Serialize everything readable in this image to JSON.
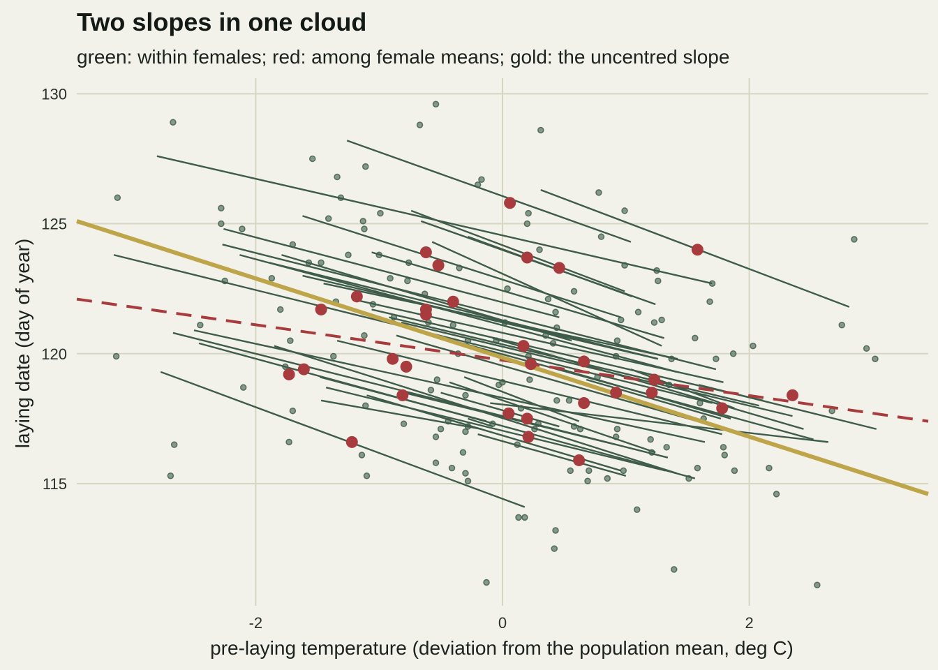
{
  "chart_data": {
    "type": "scatter",
    "title": "Two slopes in one cloud",
    "subtitle": "green: within females; red: among female means; gold: the uncentred slope",
    "xlabel": "pre-laying temperature (deviation from the population mean, deg C)",
    "ylabel": "laying date (day of year)",
    "xlim": [
      -3.45,
      3.45
    ],
    "ylim": [
      110.3,
      130.6
    ],
    "x_ticks": [
      {
        "value": -2,
        "label": "-2"
      },
      {
        "value": 0,
        "label": "0"
      },
      {
        "value": 2,
        "label": "2"
      }
    ],
    "y_ticks": [
      {
        "value": 115,
        "label": "115"
      },
      {
        "value": 120,
        "label": "120"
      },
      {
        "value": 125,
        "label": "125"
      },
      {
        "value": 130,
        "label": "130"
      }
    ],
    "grid": true,
    "legend": "none",
    "colors": {
      "background": "#f2f1ea",
      "grid": "#d6d7c3",
      "points": "#5e7c66",
      "within_lines": "#3f5c4a",
      "female_means": "#a83b3d",
      "between_line": "#a83b3d",
      "uncentred_line": "#bfa54a"
    },
    "observations": [
      [
        -3.12,
        126.0
      ],
      [
        -3.13,
        119.9
      ],
      [
        -2.67,
        128.9
      ],
      [
        -2.66,
        116.5
      ],
      [
        -2.69,
        115.3
      ],
      [
        -2.45,
        121.1
      ],
      [
        -2.28,
        125.6
      ],
      [
        -2.28,
        125.0
      ],
      [
        -2.25,
        122.8
      ],
      [
        -2.11,
        124.8
      ],
      [
        -2.1,
        118.7
      ],
      [
        -1.87,
        122.9
      ],
      [
        -1.8,
        121.7
      ],
      [
        -1.76,
        119.5
      ],
      [
        -1.7,
        124.2
      ],
      [
        -1.72,
        120.5
      ],
      [
        -1.7,
        117.8
      ],
      [
        -1.73,
        116.6
      ],
      [
        -1.57,
        123.5
      ],
      [
        -1.47,
        123.5
      ],
      [
        -1.54,
        127.5
      ],
      [
        -1.41,
        125.2
      ],
      [
        -1.35,
        122.0
      ],
      [
        -1.37,
        119.9
      ],
      [
        -1.34,
        126.8
      ],
      [
        -1.31,
        126.0
      ],
      [
        -1.25,
        123.8
      ],
      [
        -1.13,
        125.1
      ],
      [
        -1.12,
        124.8
      ],
      [
        -1.11,
        127.2
      ],
      [
        -1.12,
        120.7
      ],
      [
        -1.11,
        118.0
      ],
      [
        -1.14,
        116.1
      ],
      [
        -1.1,
        115.3
      ],
      [
        -1.05,
        121.9
      ],
      [
        -1.0,
        123.8
      ],
      [
        -0.99,
        125.4
      ],
      [
        -0.91,
        122.9
      ],
      [
        -0.88,
        121.4
      ],
      [
        -0.8,
        117.3
      ],
      [
        -0.76,
        123.5
      ],
      [
        -0.77,
        122.8
      ],
      [
        -0.63,
        122.3
      ],
      [
        -0.6,
        121.2
      ],
      [
        -0.58,
        118.6
      ],
      [
        -0.54,
        129.6
      ],
      [
        -0.67,
        128.8
      ],
      [
        -0.53,
        119.0
      ],
      [
        -0.54,
        116.8
      ],
      [
        -0.54,
        115.8
      ],
      [
        -0.5,
        117.1
      ],
      [
        -0.44,
        117.4
      ],
      [
        -0.4,
        121.1
      ],
      [
        -0.41,
        115.6
      ],
      [
        -0.35,
        123.3
      ],
      [
        -0.36,
        120.0
      ],
      [
        -0.3,
        117.0
      ],
      [
        -0.3,
        118.4
      ],
      [
        -0.28,
        120.5
      ],
      [
        -0.32,
        116.2
      ],
      [
        -0.3,
        115.4
      ],
      [
        -0.2,
        126.5
      ],
      [
        -0.17,
        126.7
      ],
      [
        -0.28,
        117.2
      ],
      [
        -0.28,
        115.1
      ],
      [
        -0.13,
        111.2
      ],
      [
        -0.08,
        117.3
      ],
      [
        -0.03,
        118.8
      ],
      [
        -0.05,
        120.5
      ],
      [
        0.0,
        118.9
      ],
      [
        0.02,
        121.2
      ],
      [
        0.04,
        122.5
      ],
      [
        0.13,
        113.7
      ],
      [
        0.12,
        116.5
      ],
      [
        0.15,
        117.9
      ],
      [
        0.18,
        113.7
      ],
      [
        0.21,
        125.4
      ],
      [
        0.2,
        125.0
      ],
      [
        0.21,
        119.9
      ],
      [
        0.22,
        119.0
      ],
      [
        0.26,
        117.1
      ],
      [
        0.29,
        117.3
      ],
      [
        0.3,
        124.0
      ],
      [
        0.31,
        128.6
      ],
      [
        0.37,
        122.1
      ],
      [
        0.35,
        120.7
      ],
      [
        0.41,
        120.4
      ],
      [
        0.43,
        121.6
      ],
      [
        0.44,
        121.0
      ],
      [
        0.44,
        118.2
      ],
      [
        0.43,
        113.2
      ],
      [
        0.42,
        112.5
      ],
      [
        0.54,
        118.2
      ],
      [
        0.55,
        115.5
      ],
      [
        0.58,
        117.2
      ],
      [
        0.58,
        122.4
      ],
      [
        0.63,
        117.1
      ],
      [
        0.7,
        115.5
      ],
      [
        0.69,
        115.1
      ],
      [
        0.77,
        119.1
      ],
      [
        0.78,
        126.2
      ],
      [
        0.8,
        124.5
      ],
      [
        0.85,
        115.2
      ],
      [
        0.92,
        119.9
      ],
      [
        0.93,
        120.5
      ],
      [
        0.92,
        116.8
      ],
      [
        0.93,
        117.1
      ],
      [
        0.96,
        121.3
      ],
      [
        0.98,
        115.5
      ],
      [
        0.99,
        123.4
      ],
      [
        0.99,
        125.5
      ],
      [
        1.09,
        114.0
      ],
      [
        1.1,
        121.6
      ],
      [
        1.2,
        116.7
      ],
      [
        1.21,
        116.2
      ],
      [
        1.23,
        121.2
      ],
      [
        1.25,
        123.2
      ],
      [
        1.26,
        122.8
      ],
      [
        1.29,
        121.3
      ],
      [
        1.33,
        116.4
      ],
      [
        1.35,
        118.8
      ],
      [
        1.37,
        119.8
      ],
      [
        1.39,
        111.7
      ],
      [
        1.51,
        115.2
      ],
      [
        1.56,
        120.6
      ],
      [
        1.58,
        115.6
      ],
      [
        1.6,
        118.1
      ],
      [
        1.63,
        117.5
      ],
      [
        1.68,
        122.0
      ],
      [
        1.7,
        122.7
      ],
      [
        1.73,
        119.8
      ],
      [
        1.79,
        116.4
      ],
      [
        1.8,
        116.1
      ],
      [
        1.87,
        120.0
      ],
      [
        1.88,
        115.5
      ],
      [
        2.03,
        120.3
      ],
      [
        2.16,
        115.6
      ],
      [
        2.22,
        114.6
      ],
      [
        2.55,
        111.1
      ],
      [
        2.67,
        117.8
      ],
      [
        2.75,
        121.1
      ],
      [
        2.85,
        124.4
      ],
      [
        2.95,
        120.2
      ],
      [
        3.02,
        119.8
      ]
    ],
    "female_means": [
      [
        0.06,
        125.8
      ],
      [
        1.58,
        124.0
      ],
      [
        -0.62,
        123.9
      ],
      [
        0.2,
        123.7
      ],
      [
        -0.52,
        123.4
      ],
      [
        0.46,
        123.3
      ],
      [
        -1.18,
        122.2
      ],
      [
        -0.4,
        122.0
      ],
      [
        -1.47,
        121.7
      ],
      [
        -0.62,
        121.7
      ],
      [
        -0.62,
        121.5
      ],
      [
        0.17,
        120.3
      ],
      [
        -0.89,
        119.8
      ],
      [
        0.66,
        119.7
      ],
      [
        -0.78,
        119.5
      ],
      [
        0.23,
        119.6
      ],
      [
        -1.73,
        119.2
      ],
      [
        -1.61,
        119.4
      ],
      [
        1.23,
        119.0
      ],
      [
        0.92,
        118.5
      ],
      [
        1.21,
        118.5
      ],
      [
        -0.81,
        118.4
      ],
      [
        0.66,
        118.1
      ],
      [
        1.78,
        117.9
      ],
      [
        2.35,
        118.4
      ],
      [
        0.05,
        117.7
      ],
      [
        0.2,
        117.5
      ],
      [
        0.21,
        116.8
      ],
      [
        -1.22,
        116.6
      ],
      [
        0.62,
        115.9
      ]
    ],
    "within_segments": [
      [
        -2.8,
        127.6,
        1.7,
        122.7
      ],
      [
        -1.26,
        128.2,
        1.04,
        124.3
      ],
      [
        0.31,
        126.3,
        2.81,
        121.8
      ],
      [
        -0.74,
        125.5,
        0.99,
        122.4
      ],
      [
        -0.66,
        125.1,
        1.24,
        121.9
      ],
      [
        -0.57,
        124.3,
        1.29,
        120.3
      ],
      [
        -1.62,
        125.3,
        0.96,
        121.4
      ],
      [
        -0.28,
        124.5,
        1.05,
        122.2
      ],
      [
        -2.26,
        124.8,
        0.46,
        121.4
      ],
      [
        -2.27,
        124.2,
        1.73,
        119.4
      ],
      [
        -1.06,
        123.9,
        1.31,
        120.6
      ],
      [
        -2.13,
        123.8,
        1.41,
        119.3
      ],
      [
        -1.79,
        123.8,
        0.56,
        120.5
      ],
      [
        -1.89,
        123.5,
        1.26,
        119.8
      ],
      [
        -1.62,
        123.0,
        1.26,
        119.8
      ],
      [
        -1.45,
        122.7,
        1.42,
        119.8
      ],
      [
        -1.22,
        122.1,
        1.79,
        118.9
      ],
      [
        -1.06,
        121.7,
        2.11,
        118.2
      ],
      [
        -0.92,
        121.4,
        2.08,
        118.0
      ],
      [
        -0.82,
        121.2,
        2.35,
        117.6
      ],
      [
        -0.71,
        120.9,
        2.52,
        116.7
      ],
      [
        -0.86,
        120.7,
        1.58,
        117.4
      ],
      [
        -3.15,
        123.8,
        1.7,
        118.1
      ],
      [
        -2.67,
        120.8,
        1.34,
        116.0
      ],
      [
        0.48,
        119.4,
        1.85,
        117.5
      ],
      [
        1.04,
        119.4,
        1.88,
        117.9
      ],
      [
        1.59,
        118.8,
        3.03,
        117.1
      ],
      [
        -2.5,
        120.9,
        1.64,
        116.6
      ],
      [
        -2.46,
        120.4,
        1.56,
        115.2
      ],
      [
        -1.85,
        120.3,
        1.41,
        115.4
      ],
      [
        -1.34,
        120.5,
        1.78,
        116.9
      ],
      [
        0.68,
        119.0,
        1.77,
        117.5
      ],
      [
        -0.08,
        120.6,
        2.44,
        117.1
      ],
      [
        -1.43,
        118.7,
        1.32,
        115.5
      ],
      [
        -1.48,
        119.1,
        -0.13,
        117.4
      ],
      [
        -0.8,
        118.5,
        0.92,
        116.5
      ],
      [
        -0.43,
        118.9,
        1.24,
        116.2
      ],
      [
        -0.1,
        118.1,
        2.64,
        116.6
      ],
      [
        -0.28,
        117.5,
        -0.08,
        117.2
      ],
      [
        -0.5,
        118.5,
        0.46,
        117.2
      ],
      [
        -1.1,
        118.4,
        0.96,
        115.5
      ],
      [
        -0.2,
        116.9,
        1.0,
        115.3
      ],
      [
        -2.77,
        119.3,
        0.18,
        114.1
      ],
      [
        -1.47,
        118.2,
        -0.17,
        117.1
      ],
      [
        -0.31,
        119.1,
        0.62,
        117.4
      ]
    ],
    "between_line": {
      "x": [
        -3.45,
        3.45
      ],
      "y": [
        122.1,
        117.4
      ],
      "style": "dashed"
    },
    "uncentred_line": {
      "x": [
        -3.45,
        3.45
      ],
      "y": [
        125.1,
        114.6
      ]
    }
  }
}
